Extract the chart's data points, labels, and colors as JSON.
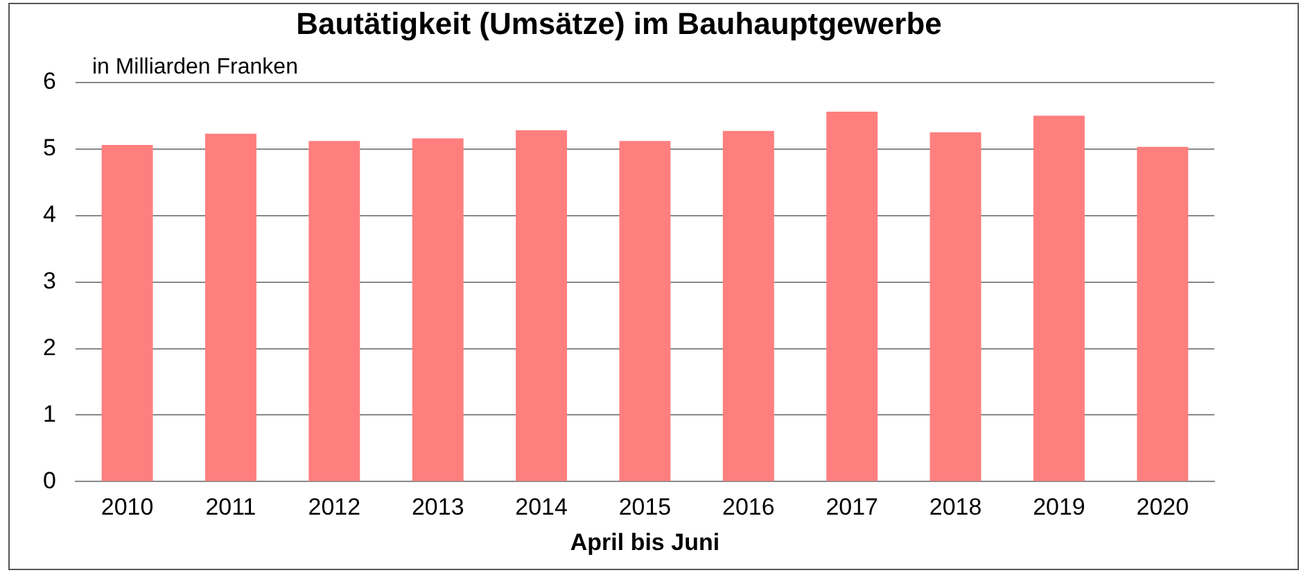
{
  "chart_data": {
    "type": "bar",
    "title": "Bautätigkeit (Umsätze) im Bauhauptgewerbe",
    "ylabel": "in Milliarden Franken",
    "xlabel": "April bis Juni",
    "categories": [
      "2010",
      "2011",
      "2012",
      "2013",
      "2014",
      "2015",
      "2016",
      "2017",
      "2018",
      "2019",
      "2020"
    ],
    "values": [
      5.06,
      5.23,
      5.12,
      5.16,
      5.28,
      5.12,
      5.27,
      5.56,
      5.25,
      5.5,
      5.03
    ],
    "color": "#ff7f7f",
    "ylim": [
      0,
      6
    ],
    "yticks": [
      0,
      1,
      2,
      3,
      4,
      5,
      6
    ],
    "grid": "y",
    "legend": false
  }
}
